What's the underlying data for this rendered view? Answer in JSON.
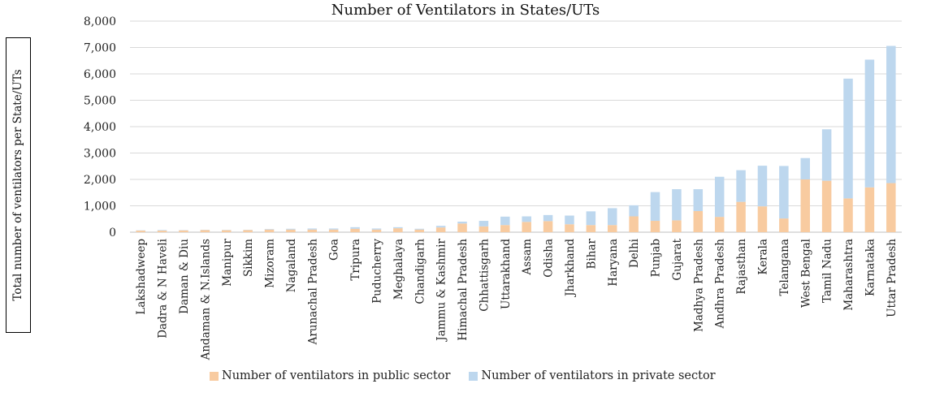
{
  "chart_data": {
    "type": "bar",
    "stacked": true,
    "title": "Number of Ventilators in States/UTs",
    "xlabel": "",
    "ylabel": "Total number of ventilators per State/UTs",
    "ylim": [
      0,
      8000
    ],
    "yticks": [
      "0",
      "1,000",
      "2,000",
      "3,000",
      "4,000",
      "5,000",
      "6,000",
      "7,000",
      "8,000"
    ],
    "grid": true,
    "legend_position": "bottom",
    "categories": [
      "Lakshadweep",
      "Dadra & N Haveli",
      "Daman & Diu",
      "Andaman & N.Islands",
      "Manipur",
      "Sikkim",
      "Mizoram",
      "Nagaland",
      "Arunachal Pradesh",
      "Goa",
      "Tripura",
      "Puducherry",
      "Meghalaya",
      "Chandigarh",
      "Jammu & Kashmir",
      "Himachal Pradesh",
      "Chhattisgarh",
      "Uttarakhand",
      "Assam",
      "Odisha",
      "Jharkhand",
      "Bihar",
      "Haryana",
      "Delhi",
      "Punjab",
      "Gujarat",
      "Madhya Pradesh",
      "Andhra Pradesh",
      "Rajasthan",
      "Kerala",
      "Telangana",
      "West Bengal",
      "Tamil Nadu",
      "Maharashtra",
      "Karnataka",
      "Uttar Pradesh"
    ],
    "series": [
      {
        "name": "Number of ventilators in public sector",
        "color": "#F8CBA0",
        "values": [
          60,
          60,
          70,
          80,
          75,
          80,
          100,
          100,
          100,
          100,
          130,
          100,
          150,
          100,
          180,
          330,
          220,
          270,
          390,
          420,
          300,
          270,
          270,
          600,
          430,
          450,
          800,
          580,
          1150,
          980,
          520,
          2000,
          1950,
          1280,
          1700,
          1860
        ]
      },
      {
        "name": "Number of ventilators in private sector",
        "color": "#BDD7EE",
        "values": [
          10,
          20,
          10,
          10,
          10,
          10,
          20,
          30,
          40,
          40,
          60,
          40,
          40,
          30,
          60,
          70,
          210,
          320,
          210,
          230,
          330,
          520,
          640,
          420,
          1090,
          1180,
          830,
          1520,
          1200,
          1540,
          1990,
          810,
          1950,
          4540,
          4840,
          5200
        ]
      }
    ]
  }
}
